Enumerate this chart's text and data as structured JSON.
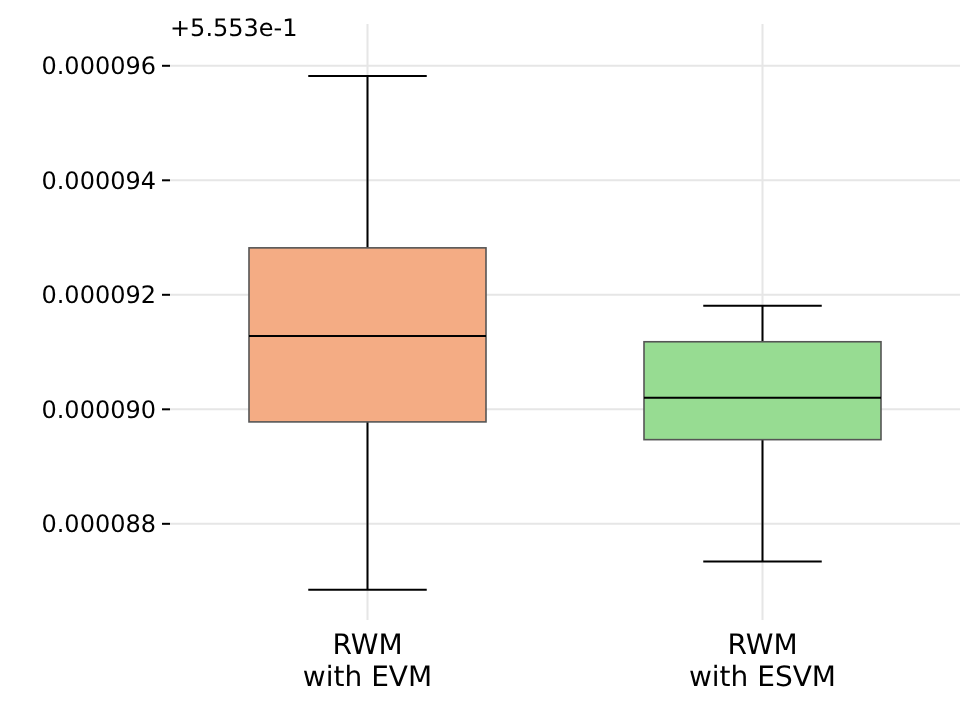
{
  "chart_data": {
    "type": "box",
    "categories": [
      "RWM\nwith EVM",
      "RWM\nwith ESVM"
    ],
    "series": [
      {
        "boxes": [
          {
            "low": 8.685e-05,
            "q1": 8.978e-05,
            "median": 9.128e-05,
            "q3": 9.282e-05,
            "high": 9.582e-05
          },
          {
            "low": 8.734e-05,
            "q1": 8.947e-05,
            "median": 9.02e-05,
            "q3": 9.118e-05,
            "high": 9.181e-05
          }
        ],
        "colors": [
          "#f4ac84",
          "#97dc92"
        ]
      }
    ],
    "ylim": [
      8.632e-05,
      9.673e-05
    ],
    "yticks": [
      {
        "value": 8.8e-05,
        "label": "0.000088"
      },
      {
        "value": 9e-05,
        "label": "0.000090"
      },
      {
        "value": 9.2e-05,
        "label": "0.000092"
      },
      {
        "value": 9.4e-05,
        "label": "0.000094"
      },
      {
        "value": 9.6e-05,
        "label": "0.000096"
      }
    ],
    "grid": true,
    "annotations": [
      "+5.553e-1"
    ]
  }
}
